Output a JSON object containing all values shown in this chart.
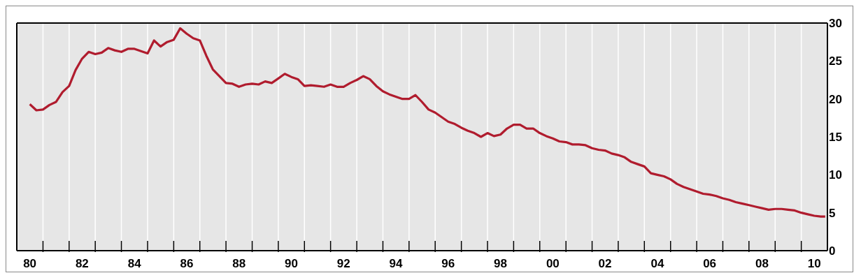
{
  "chart_data": {
    "type": "line",
    "x": [
      "1980-07-01",
      "1980-10-01",
      "1981-01-01",
      "1981-04-01",
      "1981-07-01",
      "1981-10-01",
      "1982-01-01",
      "1982-04-01",
      "1982-07-01",
      "1982-10-01",
      "1983-01-01",
      "1983-04-01",
      "1983-07-01",
      "1983-10-01",
      "1984-01-01",
      "1984-04-01",
      "1984-07-01",
      "1984-10-01",
      "1985-01-01",
      "1985-04-01",
      "1985-07-01",
      "1985-10-01",
      "1986-01-01",
      "1986-04-01",
      "1986-07-01",
      "1986-10-01",
      "1987-01-01",
      "1987-04-01",
      "1987-07-01",
      "1987-10-01",
      "1988-01-01",
      "1988-04-01",
      "1988-07-01",
      "1988-10-01",
      "1989-01-01",
      "1989-04-01",
      "1989-07-01",
      "1989-10-01",
      "1990-01-01",
      "1990-04-01",
      "1990-07-01",
      "1990-10-01",
      "1991-01-01",
      "1991-04-01",
      "1991-07-01",
      "1991-10-01",
      "1992-01-01",
      "1992-04-01",
      "1992-07-01",
      "1992-10-01",
      "1993-01-01",
      "1993-04-01",
      "1993-07-01",
      "1993-10-01",
      "1994-01-01",
      "1994-04-01",
      "1994-07-01",
      "1994-10-01",
      "1995-01-01",
      "1995-04-01",
      "1995-07-01",
      "1995-10-01",
      "1996-01-01",
      "1996-04-01",
      "1996-07-01",
      "1996-10-01",
      "1997-01-01",
      "1997-04-01",
      "1997-07-01",
      "1997-10-01",
      "1998-01-01",
      "1998-04-01",
      "1998-07-01",
      "1998-10-01",
      "1999-01-01",
      "1999-04-01",
      "1999-07-01",
      "1999-10-01",
      "2000-01-01",
      "2000-04-01",
      "2000-07-01",
      "2000-10-01",
      "2001-01-01",
      "2001-04-01",
      "2001-07-01",
      "2001-10-01",
      "2002-01-01",
      "2002-04-01",
      "2002-07-01",
      "2002-10-01",
      "2003-01-01",
      "2003-04-01",
      "2003-07-01",
      "2003-10-01",
      "2004-01-01",
      "2004-04-01",
      "2004-07-01",
      "2004-10-01",
      "2005-01-01",
      "2005-04-01",
      "2005-07-01",
      "2005-10-01",
      "2006-01-01",
      "2006-04-01",
      "2006-07-01",
      "2006-10-01",
      "2007-01-01",
      "2007-04-01",
      "2007-07-01",
      "2007-10-01",
      "2008-01-01",
      "2008-04-01",
      "2008-07-01",
      "2008-10-01",
      "2009-01-01",
      "2009-04-01",
      "2009-07-01",
      "2009-10-01",
      "2010-01-01",
      "2010-04-01",
      "2010-07-01",
      "2010-10-01",
      "2010-12-01"
    ],
    "series": [
      {
        "color": "#b01c2e",
        "values": [
          19.3,
          18.5,
          18.6,
          19.2,
          19.6,
          20.9,
          21.7,
          23.8,
          25.3,
          26.2,
          25.9,
          26.1,
          26.7,
          26.4,
          26.2,
          26.6,
          26.6,
          26.3,
          26.0,
          27.7,
          26.9,
          27.5,
          27.8,
          29.3,
          28.6,
          28.0,
          27.7,
          25.7,
          23.9,
          23.0,
          22.1,
          22.0,
          21.6,
          21.9,
          22.0,
          21.9,
          22.3,
          22.1,
          22.7,
          23.3,
          22.9,
          22.6,
          21.7,
          21.8,
          21.7,
          21.6,
          21.9,
          21.6,
          21.6,
          22.1,
          22.5,
          23.0,
          22.6,
          21.7,
          21.0,
          20.6,
          20.3,
          20.0,
          20.0,
          20.5,
          19.6,
          18.6,
          18.2,
          17.6,
          17.0,
          16.7,
          16.2,
          15.8,
          15.5,
          15.0,
          15.5,
          15.1,
          15.3,
          16.1,
          16.6,
          16.6,
          16.1,
          16.1,
          15.5,
          15.1,
          14.8,
          14.4,
          14.3,
          14.0,
          14.0,
          13.9,
          13.5,
          13.3,
          13.2,
          12.8,
          12.6,
          12.3,
          11.7,
          11.4,
          11.1,
          10.2,
          10.0,
          9.8,
          9.4,
          8.8,
          8.4,
          8.1,
          7.8,
          7.5,
          7.4,
          7.2,
          6.9,
          6.7,
          6.4,
          6.2,
          6.0,
          5.8,
          5.6,
          5.4,
          5.5,
          5.5,
          5.4,
          5.3,
          5.0,
          4.8,
          4.6,
          4.5,
          4.5
        ]
      }
    ],
    "xlim": [
      "1980-01-01",
      "2011-01-01"
    ],
    "xticks": [
      {
        "value": "1980-07-01",
        "label": "80"
      },
      {
        "value": "1982-07-01",
        "label": "82"
      },
      {
        "value": "1984-07-01",
        "label": "84"
      },
      {
        "value": "1986-07-01",
        "label": "86"
      },
      {
        "value": "1988-07-01",
        "label": "88"
      },
      {
        "value": "1990-07-01",
        "label": "90"
      },
      {
        "value": "1992-07-01",
        "label": "92"
      },
      {
        "value": "1994-07-01",
        "label": "94"
      },
      {
        "value": "1996-07-01",
        "label": "96"
      },
      {
        "value": "1998-07-01",
        "label": "98"
      },
      {
        "value": "2000-07-01",
        "label": "00"
      },
      {
        "value": "2002-07-01",
        "label": "02"
      },
      {
        "value": "2004-07-01",
        "label": "04"
      },
      {
        "value": "2006-07-01",
        "label": "06"
      },
      {
        "value": "2008-07-01",
        "label": "08"
      },
      {
        "value": "2010-07-01",
        "label": "10"
      },
      {
        "value": "1981-01-01",
        "label": null
      },
      {
        "value": "1982-01-01",
        "label": null
      },
      {
        "value": "1983-01-01",
        "label": null
      },
      {
        "value": "1984-01-01",
        "label": null
      },
      {
        "value": "1985-01-01",
        "label": null
      },
      {
        "value": "1986-01-01",
        "label": null
      },
      {
        "value": "1987-01-01",
        "label": null
      },
      {
        "value": "1988-01-01",
        "label": null
      },
      {
        "value": "1989-01-01",
        "label": null
      },
      {
        "value": "1990-01-01",
        "label": null
      },
      {
        "value": "1991-01-01",
        "label": null
      },
      {
        "value": "1992-01-01",
        "label": null
      },
      {
        "value": "1993-01-01",
        "label": null
      },
      {
        "value": "1994-01-01",
        "label": null
      },
      {
        "value": "1995-01-01",
        "label": null
      },
      {
        "value": "1996-01-01",
        "label": null
      },
      {
        "value": "1997-01-01",
        "label": null
      },
      {
        "value": "1998-01-01",
        "label": null
      },
      {
        "value": "1999-01-01",
        "label": null
      },
      {
        "value": "2000-01-01",
        "label": null
      },
      {
        "value": "2001-01-01",
        "label": null
      },
      {
        "value": "2002-01-01",
        "label": null
      },
      {
        "value": "2003-01-01",
        "label": null
      },
      {
        "value": "2004-01-01",
        "label": null
      },
      {
        "value": "2005-01-01",
        "label": null
      },
      {
        "value": "2006-01-01",
        "label": null
      },
      {
        "value": "2007-01-01",
        "label": null
      },
      {
        "value": "2008-01-01",
        "label": null
      },
      {
        "value": "2009-01-01",
        "label": null
      },
      {
        "value": "2010-01-01",
        "label": null
      }
    ],
    "ylim": [
      0,
      30
    ],
    "yticks": [
      0,
      5,
      10,
      15,
      20,
      25,
      30
    ],
    "grid": true,
    "marker": "none",
    "line_style": "solid",
    "legend": false
  }
}
